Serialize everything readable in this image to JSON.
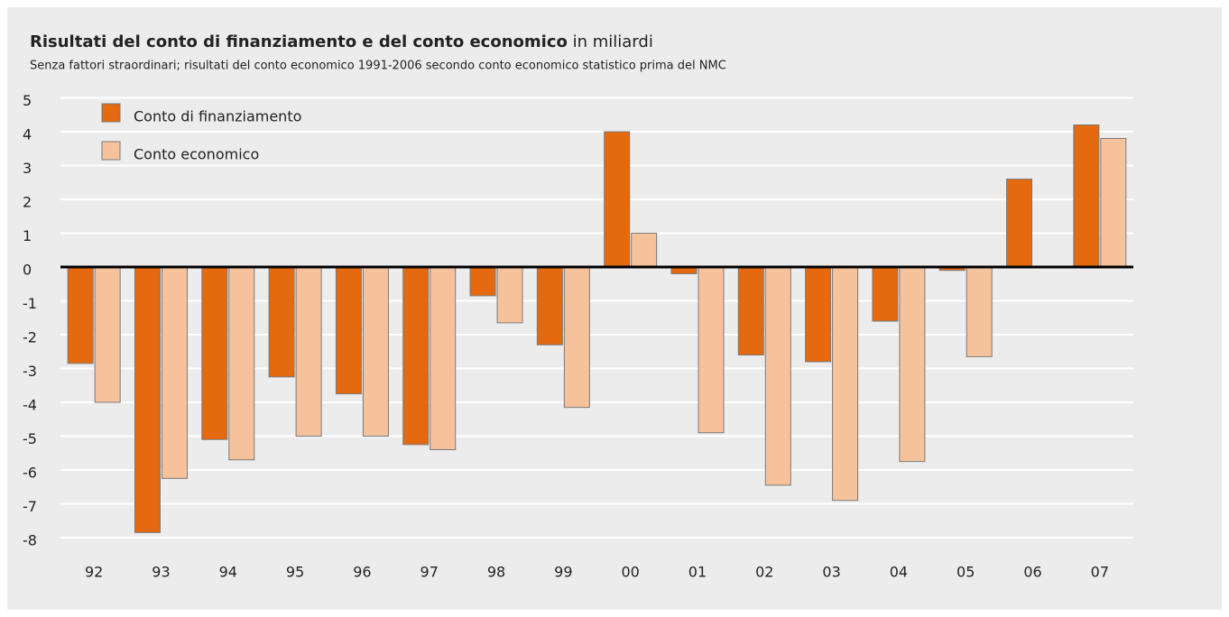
{
  "chart_data": {
    "type": "bar",
    "title": "Risultati del conto di finanziamento e del conto economico",
    "title_unit": "in miliardi",
    "subtitle": "Senza fattori straordinari; risultati del conto economico 1991-2006 secondo conto economico statistico prima del NMC",
    "categories": [
      "92",
      "93",
      "94",
      "95",
      "96",
      "97",
      "98",
      "99",
      "00",
      "01",
      "02",
      "03",
      "04",
      "05",
      "06",
      "07"
    ],
    "series": [
      {
        "name": "Conto di finanziamento",
        "color": "#e4690f",
        "values": [
          -2.85,
          -7.85,
          -5.1,
          -3.25,
          -3.75,
          -5.25,
          -0.85,
          -2.3,
          4.0,
          -0.2,
          -2.6,
          -2.8,
          -1.6,
          -0.1,
          2.6,
          4.2
        ]
      },
      {
        "name": "Conto economico",
        "color": "#f6c29c",
        "values": [
          -4.0,
          -6.25,
          -5.7,
          -5.0,
          -5.0,
          -5.4,
          -1.65,
          -4.15,
          1.0,
          -4.9,
          -6.45,
          -6.9,
          -5.75,
          -2.65,
          0,
          3.8
        ]
      }
    ],
    "ylim": [
      -8,
      5
    ],
    "yticks": [
      -8,
      -7,
      -6,
      -5,
      -4,
      -3,
      -2,
      -1,
      0,
      1,
      2,
      3,
      4,
      5
    ],
    "grid": true,
    "legend": "upper left"
  }
}
